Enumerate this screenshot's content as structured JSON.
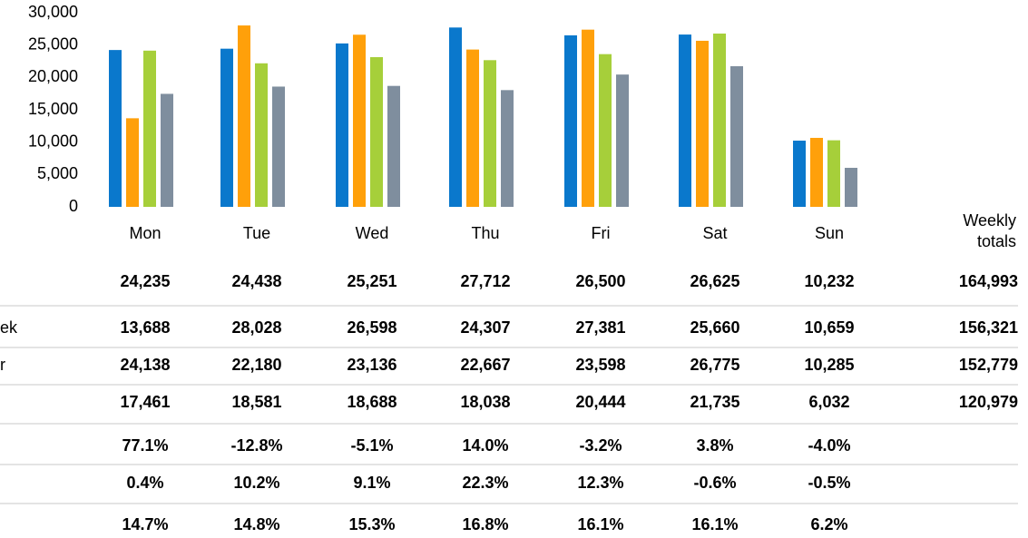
{
  "chart_data": {
    "type": "bar",
    "categories": [
      "Mon",
      "Tue",
      "Wed",
      "Thu",
      "Fri",
      "Sat",
      "Sun"
    ],
    "ylim": [
      0,
      30000
    ],
    "yticks": [
      {
        "value": 0,
        "label": "0"
      },
      {
        "value": 5000,
        "label": "5,000"
      },
      {
        "value": 10000,
        "label": "10,000"
      },
      {
        "value": 15000,
        "label": "15,000"
      },
      {
        "value": 20000,
        "label": "20,000"
      },
      {
        "value": 25000,
        "label": "25,000"
      },
      {
        "value": 30000,
        "label": "30,000"
      }
    ],
    "totals_header": [
      "Weekly",
      "totals"
    ],
    "series": [
      {
        "color": "#0a78cc",
        "values": [
          24235,
          24438,
          25251,
          27712,
          26500,
          26625,
          10232
        ],
        "value_labels": [
          "24,235",
          "24,438",
          "25,251",
          "27,712",
          "26,500",
          "26,625",
          "10,232"
        ],
        "total": "164,993"
      },
      {
        "label": "ek",
        "color": "#ffa00a",
        "values": [
          13688,
          28028,
          26598,
          24307,
          27381,
          25660,
          10659
        ],
        "value_labels": [
          "13,688",
          "28,028",
          "26,598",
          "24,307",
          "27,381",
          "25,660",
          "10,659"
        ],
        "total": "156,321"
      },
      {
        "label": "r",
        "color": "#a6cf3a",
        "values": [
          24138,
          22180,
          23136,
          22667,
          23598,
          26775,
          10285
        ],
        "value_labels": [
          "24,138",
          "22,180",
          "23,136",
          "22,667",
          "23,598",
          "26,775",
          "10,285"
        ],
        "total": "152,779"
      },
      {
        "color": "#7f8e9e",
        "values": [
          17461,
          18581,
          18688,
          18038,
          20444,
          21735,
          6032
        ],
        "value_labels": [
          "17,461",
          "18,581",
          "18,688",
          "18,038",
          "20,444",
          "21,735",
          "6,032"
        ],
        "total": "120,979"
      }
    ],
    "percent_rows": [
      {
        "values": [
          77.1,
          -12.8,
          -5.1,
          14.0,
          -3.2,
          3.8,
          -4.0
        ],
        "value_labels": [
          "77.1%",
          "-12.8%",
          "-5.1%",
          "14.0%",
          "-3.2%",
          "3.8%",
          "-4.0%"
        ],
        "colors": [
          "#1b7d5e",
          "#c0282d",
          "#c0282d",
          "#1b7d5e",
          "#c0282d",
          "#1b7d5e",
          "#c0282d"
        ]
      },
      {
        "values": [
          0.4,
          10.2,
          9.1,
          22.3,
          12.3,
          -0.6,
          -0.5
        ],
        "value_labels": [
          "0.4%",
          "10.2%",
          "9.1%",
          "22.3%",
          "12.3%",
          "-0.6%",
          "-0.5%"
        ],
        "colors": [
          "#1b7d5e",
          "#1b7d5e",
          "#1b7d5e",
          "#1b7d5e",
          "#1b7d5e",
          "#e0581a",
          "#e0581a"
        ]
      },
      {
        "values": [
          14.7,
          14.8,
          15.3,
          16.8,
          16.1,
          16.1,
          6.2
        ],
        "value_labels": [
          "14.7%",
          "14.8%",
          "15.3%",
          "16.8%",
          "16.1%",
          "16.1%",
          "6.2%"
        ],
        "colors": [
          "#000000",
          "#000000",
          "#000000",
          "#000000",
          "#000000",
          "#000000",
          "#000000"
        ]
      }
    ]
  }
}
